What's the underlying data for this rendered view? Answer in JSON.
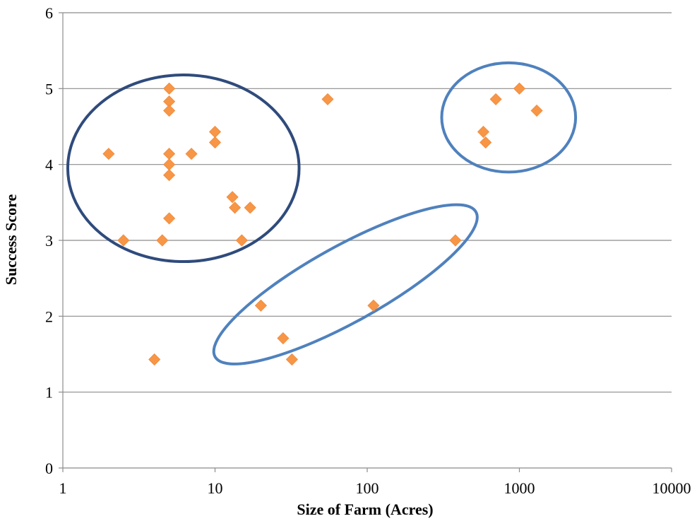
{
  "chart_data": {
    "type": "scatter",
    "title": "",
    "xlabel": "Size of Farm (Acres)",
    "ylabel": "Success Score",
    "x_scale": "log",
    "xlim": [
      1,
      10000
    ],
    "ylim": [
      0,
      6
    ],
    "x_ticks": [
      {
        "value": 1,
        "label": "1"
      },
      {
        "value": 10,
        "label": "10"
      },
      {
        "value": 100,
        "label": "100"
      },
      {
        "value": 1000,
        "label": "1000"
      },
      {
        "value": 10000,
        "label": "10000"
      }
    ],
    "y_ticks": [
      {
        "value": 0,
        "label": "0"
      },
      {
        "value": 1,
        "label": "1"
      },
      {
        "value": 2,
        "label": "2"
      },
      {
        "value": 3,
        "label": "3"
      },
      {
        "value": 4,
        "label": "4"
      },
      {
        "value": 5,
        "label": "5"
      },
      {
        "value": 6,
        "label": "6"
      }
    ],
    "grid": "horizontal",
    "legend": "none",
    "marker": "diamond",
    "marker_color": "#f79646",
    "series": [
      {
        "points": [
          {
            "x": 2,
            "y": 4.14
          },
          {
            "x": 2.5,
            "y": 3.0
          },
          {
            "x": 4,
            "y": 1.43
          },
          {
            "x": 4.5,
            "y": 3.0
          },
          {
            "x": 5,
            "y": 5.0
          },
          {
            "x": 5,
            "y": 4.83
          },
          {
            "x": 5,
            "y": 4.71
          },
          {
            "x": 5,
            "y": 4.14
          },
          {
            "x": 5,
            "y": 4.0
          },
          {
            "x": 5,
            "y": 3.86
          },
          {
            "x": 5,
            "y": 3.29
          },
          {
            "x": 7,
            "y": 4.14
          },
          {
            "x": 10,
            "y": 4.43
          },
          {
            "x": 10,
            "y": 4.29
          },
          {
            "x": 13,
            "y": 3.57
          },
          {
            "x": 13.5,
            "y": 3.43
          },
          {
            "x": 15,
            "y": 3.0
          },
          {
            "x": 17,
            "y": 3.43
          },
          {
            "x": 20,
            "y": 2.14
          },
          {
            "x": 28,
            "y": 1.71
          },
          {
            "x": 32,
            "y": 1.43
          },
          {
            "x": 55,
            "y": 4.86
          },
          {
            "x": 110,
            "y": 2.14
          },
          {
            "x": 380,
            "y": 3.0
          },
          {
            "x": 580,
            "y": 4.43
          },
          {
            "x": 600,
            "y": 4.29
          },
          {
            "x": 700,
            "y": 4.86
          },
          {
            "x": 1000,
            "y": 5.0
          },
          {
            "x": 1300,
            "y": 4.71
          }
        ]
      }
    ],
    "highlight_ellipses": [
      {
        "cx": 6.2,
        "cy": 3.95,
        "rx_decades": 0.76,
        "ry": 1.23,
        "angle": 0,
        "color": "#2f4b7c"
      },
      {
        "cx": 850,
        "cy": 4.62,
        "rx_decades": 0.44,
        "ry": 0.72,
        "angle": 0,
        "color": "#4f81bd"
      },
      {
        "cx": 72,
        "cy": 2.42,
        "rx_decades": 0.98,
        "ry": 0.5,
        "angle": -29,
        "color": "#4f81bd"
      }
    ]
  }
}
